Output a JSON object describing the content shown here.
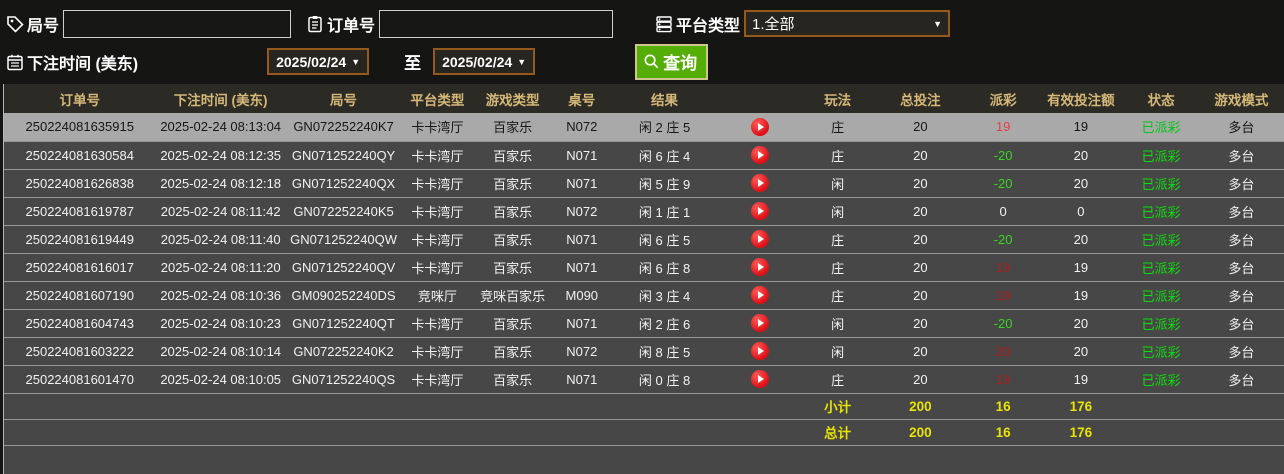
{
  "filters": {
    "round": {
      "label": "局号",
      "value": ""
    },
    "order": {
      "label": "订单号",
      "value": ""
    },
    "platform": {
      "label": "平台类型",
      "value": "1.全部"
    },
    "bet_time": {
      "label": "下注时间 (美东)",
      "from": "2025/02/24",
      "to": "2025/02/24",
      "to_separator": "至"
    },
    "search_button": "查询"
  },
  "table": {
    "headers": [
      "订单号",
      "下注时间 (美东)",
      "局号",
      "平台类型",
      "游戏类型",
      "桌号",
      "结果",
      "",
      "玩法",
      "总投注",
      "派彩",
      "有效投注额",
      "状态",
      "游戏模式"
    ],
    "rows": [
      {
        "order_no": "250224081635915",
        "bet_time": "2025-02-24 08:13:04",
        "round_no": "GN072252240K7",
        "platform": "卡卡湾厅",
        "game_type": "百家乐",
        "table_no": "N072",
        "result": "闲 2 庄 5",
        "play_type": "庄",
        "total_bet": "20",
        "payout": "19",
        "valid_bet": "19",
        "status": "已派彩",
        "mode": "多台",
        "selected": true
      },
      {
        "order_no": "250224081630584",
        "bet_time": "2025-02-24 08:12:35",
        "round_no": "GN071252240QY",
        "platform": "卡卡湾厅",
        "game_type": "百家乐",
        "table_no": "N071",
        "result": "闲 6 庄 4",
        "play_type": "庄",
        "total_bet": "20",
        "payout": "-20",
        "valid_bet": "20",
        "status": "已派彩",
        "mode": "多台",
        "selected": false
      },
      {
        "order_no": "250224081626838",
        "bet_time": "2025-02-24 08:12:18",
        "round_no": "GN071252240QX",
        "platform": "卡卡湾厅",
        "game_type": "百家乐",
        "table_no": "N071",
        "result": "闲 5 庄 9",
        "play_type": "闲",
        "total_bet": "20",
        "payout": "-20",
        "valid_bet": "20",
        "status": "已派彩",
        "mode": "多台",
        "selected": false
      },
      {
        "order_no": "250224081619787",
        "bet_time": "2025-02-24 08:11:42",
        "round_no": "GN072252240K5",
        "platform": "卡卡湾厅",
        "game_type": "百家乐",
        "table_no": "N072",
        "result": "闲 1 庄 1",
        "play_type": "闲",
        "total_bet": "20",
        "payout": "0",
        "valid_bet": "0",
        "status": "已派彩",
        "mode": "多台",
        "selected": false
      },
      {
        "order_no": "250224081619449",
        "bet_time": "2025-02-24 08:11:40",
        "round_no": "GN071252240QW",
        "platform": "卡卡湾厅",
        "game_type": "百家乐",
        "table_no": "N071",
        "result": "闲 6 庄 5",
        "play_type": "庄",
        "total_bet": "20",
        "payout": "-20",
        "valid_bet": "20",
        "status": "已派彩",
        "mode": "多台",
        "selected": false
      },
      {
        "order_no": "250224081616017",
        "bet_time": "2025-02-24 08:11:20",
        "round_no": "GN071252240QV",
        "platform": "卡卡湾厅",
        "game_type": "百家乐",
        "table_no": "N071",
        "result": "闲 6 庄 8",
        "play_type": "庄",
        "total_bet": "20",
        "payout": "19",
        "valid_bet": "19",
        "status": "已派彩",
        "mode": "多台",
        "selected": false
      },
      {
        "order_no": "250224081607190",
        "bet_time": "2025-02-24 08:10:36",
        "round_no": "GM090252240DS",
        "platform": "竞咪厅",
        "game_type": "竞咪百家乐",
        "table_no": "M090",
        "result": "闲 3 庄 4",
        "play_type": "庄",
        "total_bet": "20",
        "payout": "19",
        "valid_bet": "19",
        "status": "已派彩",
        "mode": "多台",
        "selected": false
      },
      {
        "order_no": "250224081604743",
        "bet_time": "2025-02-24 08:10:23",
        "round_no": "GN071252240QT",
        "platform": "卡卡湾厅",
        "game_type": "百家乐",
        "table_no": "N071",
        "result": "闲 2 庄 6",
        "play_type": "闲",
        "total_bet": "20",
        "payout": "-20",
        "valid_bet": "20",
        "status": "已派彩",
        "mode": "多台",
        "selected": false
      },
      {
        "order_no": "250224081603222",
        "bet_time": "2025-02-24 08:10:14",
        "round_no": "GN072252240K2",
        "platform": "卡卡湾厅",
        "game_type": "百家乐",
        "table_no": "N072",
        "result": "闲 8 庄 5",
        "play_type": "闲",
        "total_bet": "20",
        "payout": "20",
        "valid_bet": "20",
        "status": "已派彩",
        "mode": "多台",
        "selected": false
      },
      {
        "order_no": "250224081601470",
        "bet_time": "2025-02-24 08:10:05",
        "round_no": "GN071252240QS",
        "platform": "卡卡湾厅",
        "game_type": "百家乐",
        "table_no": "N071",
        "result": "闲 0 庄 8",
        "play_type": "庄",
        "total_bet": "20",
        "payout": "19",
        "valid_bet": "19",
        "status": "已派彩",
        "mode": "多台",
        "selected": false
      }
    ],
    "summary": [
      {
        "label": "小计",
        "total_bet": "200",
        "payout": "16",
        "valid_bet": "176"
      },
      {
        "label": "总计",
        "total_bet": "200",
        "payout": "16",
        "valid_bet": "176"
      }
    ]
  },
  "colors": {
    "search_button_green": "#55ae07",
    "header_text_gold": "#d5b878",
    "payout_positive_red": "#ab2020",
    "payout_negative_green": "#38d81d",
    "status_paid_green": "#0edc0e",
    "summary_yellow": "#e8e300",
    "selected_row_bg": "#a9a9a9",
    "select_border_orange": "#96591c",
    "table_row_bg": "#474747"
  }
}
